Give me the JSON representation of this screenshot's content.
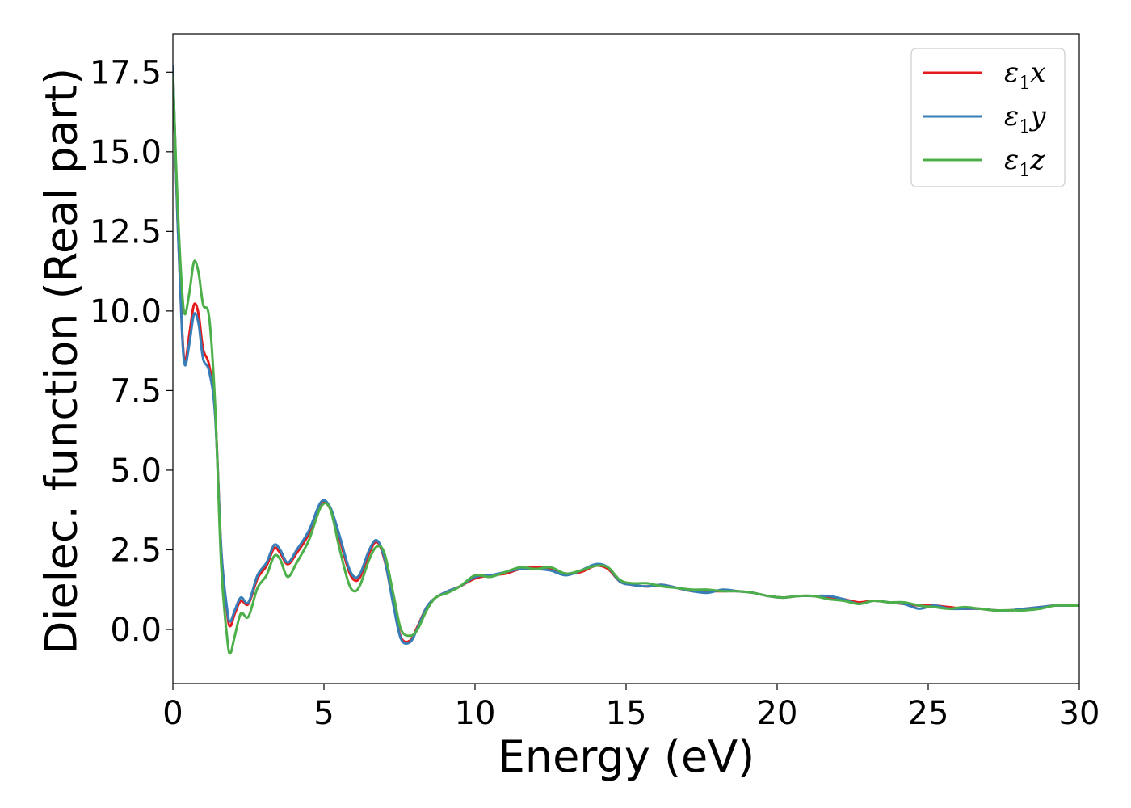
{
  "chart_data": {
    "type": "line",
    "title": "",
    "xlabel": "Energy (eV)",
    "ylabel": "Dielec. function (Real part)",
    "xlim": [
      0,
      30
    ],
    "ylim": [
      -1.7,
      18.7
    ],
    "xticks": [
      0,
      5,
      10,
      15,
      20,
      25,
      30
    ],
    "xtick_labels": [
      "0",
      "5",
      "10",
      "15",
      "20",
      "25",
      "30"
    ],
    "yticks": [
      0.0,
      2.5,
      5.0,
      7.5,
      10.0,
      12.5,
      15.0,
      17.5
    ],
    "ytick_labels": [
      "0.0",
      "2.5",
      "5.0",
      "7.5",
      "10.0",
      "12.5",
      "15.0",
      "17.5"
    ],
    "grid": false,
    "legend_position": "top-right",
    "series": [
      {
        "name": "ε₁x",
        "legend_symbol": "ε",
        "legend_sub": "1",
        "legend_var": "x",
        "color": "#e41a1c",
        "x": [
          0,
          0.15,
          0.3,
          0.4,
          0.55,
          0.7,
          0.85,
          1.0,
          1.2,
          1.4,
          1.6,
          1.8,
          1.9,
          2.05,
          2.25,
          2.5,
          2.8,
          3.1,
          3.35,
          3.55,
          3.8,
          4.1,
          4.5,
          4.9,
          5.2,
          5.5,
          5.8,
          6.0,
          6.2,
          6.5,
          6.75,
          7.0,
          7.3,
          7.55,
          7.85,
          8.1,
          8.4,
          8.7,
          9.1,
          9.5,
          10.0,
          10.5,
          11.0,
          11.5,
          12.0,
          12.5,
          13.0,
          13.5,
          14.0,
          14.4,
          14.8,
          15.2,
          15.7,
          16.2,
          16.7,
          17.2,
          17.7,
          18.2,
          18.7,
          19.2,
          19.7,
          20.2,
          20.7,
          21.2,
          21.7,
          22.2,
          22.7,
          23.2,
          23.7,
          24.2,
          24.7,
          25.2,
          25.7,
          26.2,
          26.7,
          27.2,
          27.7,
          28.2,
          28.7,
          29.2,
          29.7,
          30.0
        ],
        "y": [
          17.6,
          13.0,
          9.5,
          8.4,
          9.3,
          10.2,
          9.9,
          8.8,
          8.3,
          6.8,
          2.5,
          0.5,
          0.1,
          0.5,
          0.9,
          0.8,
          1.6,
          2.0,
          2.55,
          2.4,
          2.05,
          2.4,
          3.0,
          3.95,
          3.8,
          2.9,
          1.9,
          1.55,
          1.65,
          2.4,
          2.75,
          2.2,
          0.8,
          -0.25,
          -0.35,
          0.1,
          0.7,
          1.0,
          1.2,
          1.35,
          1.6,
          1.7,
          1.75,
          1.9,
          1.95,
          1.9,
          1.75,
          1.8,
          2.0,
          1.9,
          1.5,
          1.4,
          1.35,
          1.4,
          1.3,
          1.2,
          1.2,
          1.2,
          1.2,
          1.15,
          1.05,
          1.0,
          1.05,
          1.05,
          1.0,
          0.95,
          0.85,
          0.9,
          0.85,
          0.8,
          0.75,
          0.75,
          0.7,
          0.65,
          0.65,
          0.6,
          0.6,
          0.65,
          0.7,
          0.75,
          0.75,
          0.75
        ]
      },
      {
        "name": "ε₁y",
        "legend_symbol": "ε",
        "legend_sub": "1",
        "legend_var": "y",
        "color": "#377eb8",
        "x": [
          0,
          0.15,
          0.3,
          0.4,
          0.55,
          0.7,
          0.85,
          1.0,
          1.2,
          1.4,
          1.6,
          1.8,
          1.9,
          2.05,
          2.25,
          2.5,
          2.8,
          3.1,
          3.35,
          3.55,
          3.8,
          4.1,
          4.5,
          4.9,
          5.2,
          5.5,
          5.8,
          6.0,
          6.2,
          6.5,
          6.75,
          7.0,
          7.3,
          7.55,
          7.85,
          8.1,
          8.4,
          8.7,
          9.1,
          9.5,
          10.0,
          10.5,
          11.0,
          11.5,
          12.0,
          12.5,
          13.0,
          13.5,
          14.0,
          14.4,
          14.8,
          15.2,
          15.7,
          16.2,
          16.7,
          17.2,
          17.7,
          18.2,
          18.7,
          19.2,
          19.7,
          20.2,
          20.7,
          21.2,
          21.7,
          22.2,
          22.7,
          23.2,
          23.7,
          24.2,
          24.7,
          25.2,
          25.7,
          26.2,
          26.7,
          27.2,
          27.7,
          28.2,
          28.7,
          29.2,
          29.7,
          30.0
        ],
        "y": [
          17.7,
          13.0,
          9.4,
          8.3,
          9.0,
          9.9,
          9.6,
          8.5,
          8.1,
          6.7,
          2.5,
          0.6,
          0.25,
          0.6,
          1.0,
          0.85,
          1.7,
          2.1,
          2.65,
          2.5,
          2.1,
          2.5,
          3.1,
          4.0,
          3.85,
          3.0,
          2.0,
          1.65,
          1.75,
          2.5,
          2.8,
          2.25,
          0.75,
          -0.3,
          -0.4,
          0.05,
          0.7,
          1.0,
          1.2,
          1.35,
          1.65,
          1.7,
          1.8,
          1.9,
          1.9,
          1.85,
          1.7,
          1.85,
          2.05,
          1.95,
          1.5,
          1.4,
          1.35,
          1.4,
          1.3,
          1.2,
          1.15,
          1.25,
          1.2,
          1.15,
          1.05,
          1.0,
          1.05,
          1.05,
          1.05,
          0.95,
          0.8,
          0.9,
          0.85,
          0.8,
          0.65,
          0.75,
          0.65,
          0.65,
          0.65,
          0.6,
          0.6,
          0.65,
          0.7,
          0.75,
          0.75,
          0.75
        ]
      },
      {
        "name": "ε₁z",
        "legend_symbol": "ε",
        "legend_sub": "1",
        "legend_var": "z",
        "color": "#4daf4a",
        "x": [
          0,
          0.15,
          0.3,
          0.4,
          0.55,
          0.7,
          0.85,
          1.0,
          1.2,
          1.4,
          1.6,
          1.8,
          1.9,
          2.05,
          2.25,
          2.5,
          2.8,
          3.1,
          3.35,
          3.55,
          3.8,
          4.1,
          4.5,
          4.9,
          5.2,
          5.5,
          5.8,
          6.0,
          6.2,
          6.5,
          6.75,
          7.0,
          7.3,
          7.55,
          7.85,
          8.1,
          8.4,
          8.7,
          9.1,
          9.5,
          10.0,
          10.5,
          11.0,
          11.5,
          12.0,
          12.5,
          13.0,
          13.5,
          14.0,
          14.4,
          14.8,
          15.2,
          15.7,
          16.2,
          16.7,
          17.2,
          17.7,
          18.2,
          18.7,
          19.2,
          19.7,
          20.2,
          20.7,
          21.2,
          21.7,
          22.2,
          22.7,
          23.2,
          23.7,
          24.2,
          24.7,
          25.2,
          25.7,
          26.2,
          26.7,
          27.2,
          27.7,
          28.2,
          28.7,
          29.2,
          29.7,
          30.0
        ],
        "y": [
          17.4,
          13.5,
          10.7,
          9.9,
          10.6,
          11.55,
          11.2,
          10.2,
          9.8,
          7.0,
          2.0,
          -0.3,
          -0.75,
          -0.2,
          0.5,
          0.4,
          1.3,
          1.7,
          2.3,
          2.2,
          1.65,
          2.1,
          2.8,
          3.85,
          3.8,
          2.6,
          1.5,
          1.2,
          1.4,
          2.2,
          2.6,
          2.4,
          1.1,
          0.0,
          -0.2,
          0.0,
          0.6,
          1.0,
          1.15,
          1.35,
          1.7,
          1.65,
          1.8,
          1.95,
          1.9,
          1.95,
          1.75,
          1.85,
          2.0,
          1.95,
          1.55,
          1.45,
          1.45,
          1.35,
          1.3,
          1.25,
          1.25,
          1.2,
          1.2,
          1.15,
          1.05,
          1.0,
          1.05,
          1.05,
          0.95,
          0.9,
          0.8,
          0.9,
          0.85,
          0.85,
          0.75,
          0.7,
          0.65,
          0.7,
          0.65,
          0.6,
          0.6,
          0.6,
          0.65,
          0.75,
          0.75,
          0.75
        ]
      }
    ]
  }
}
